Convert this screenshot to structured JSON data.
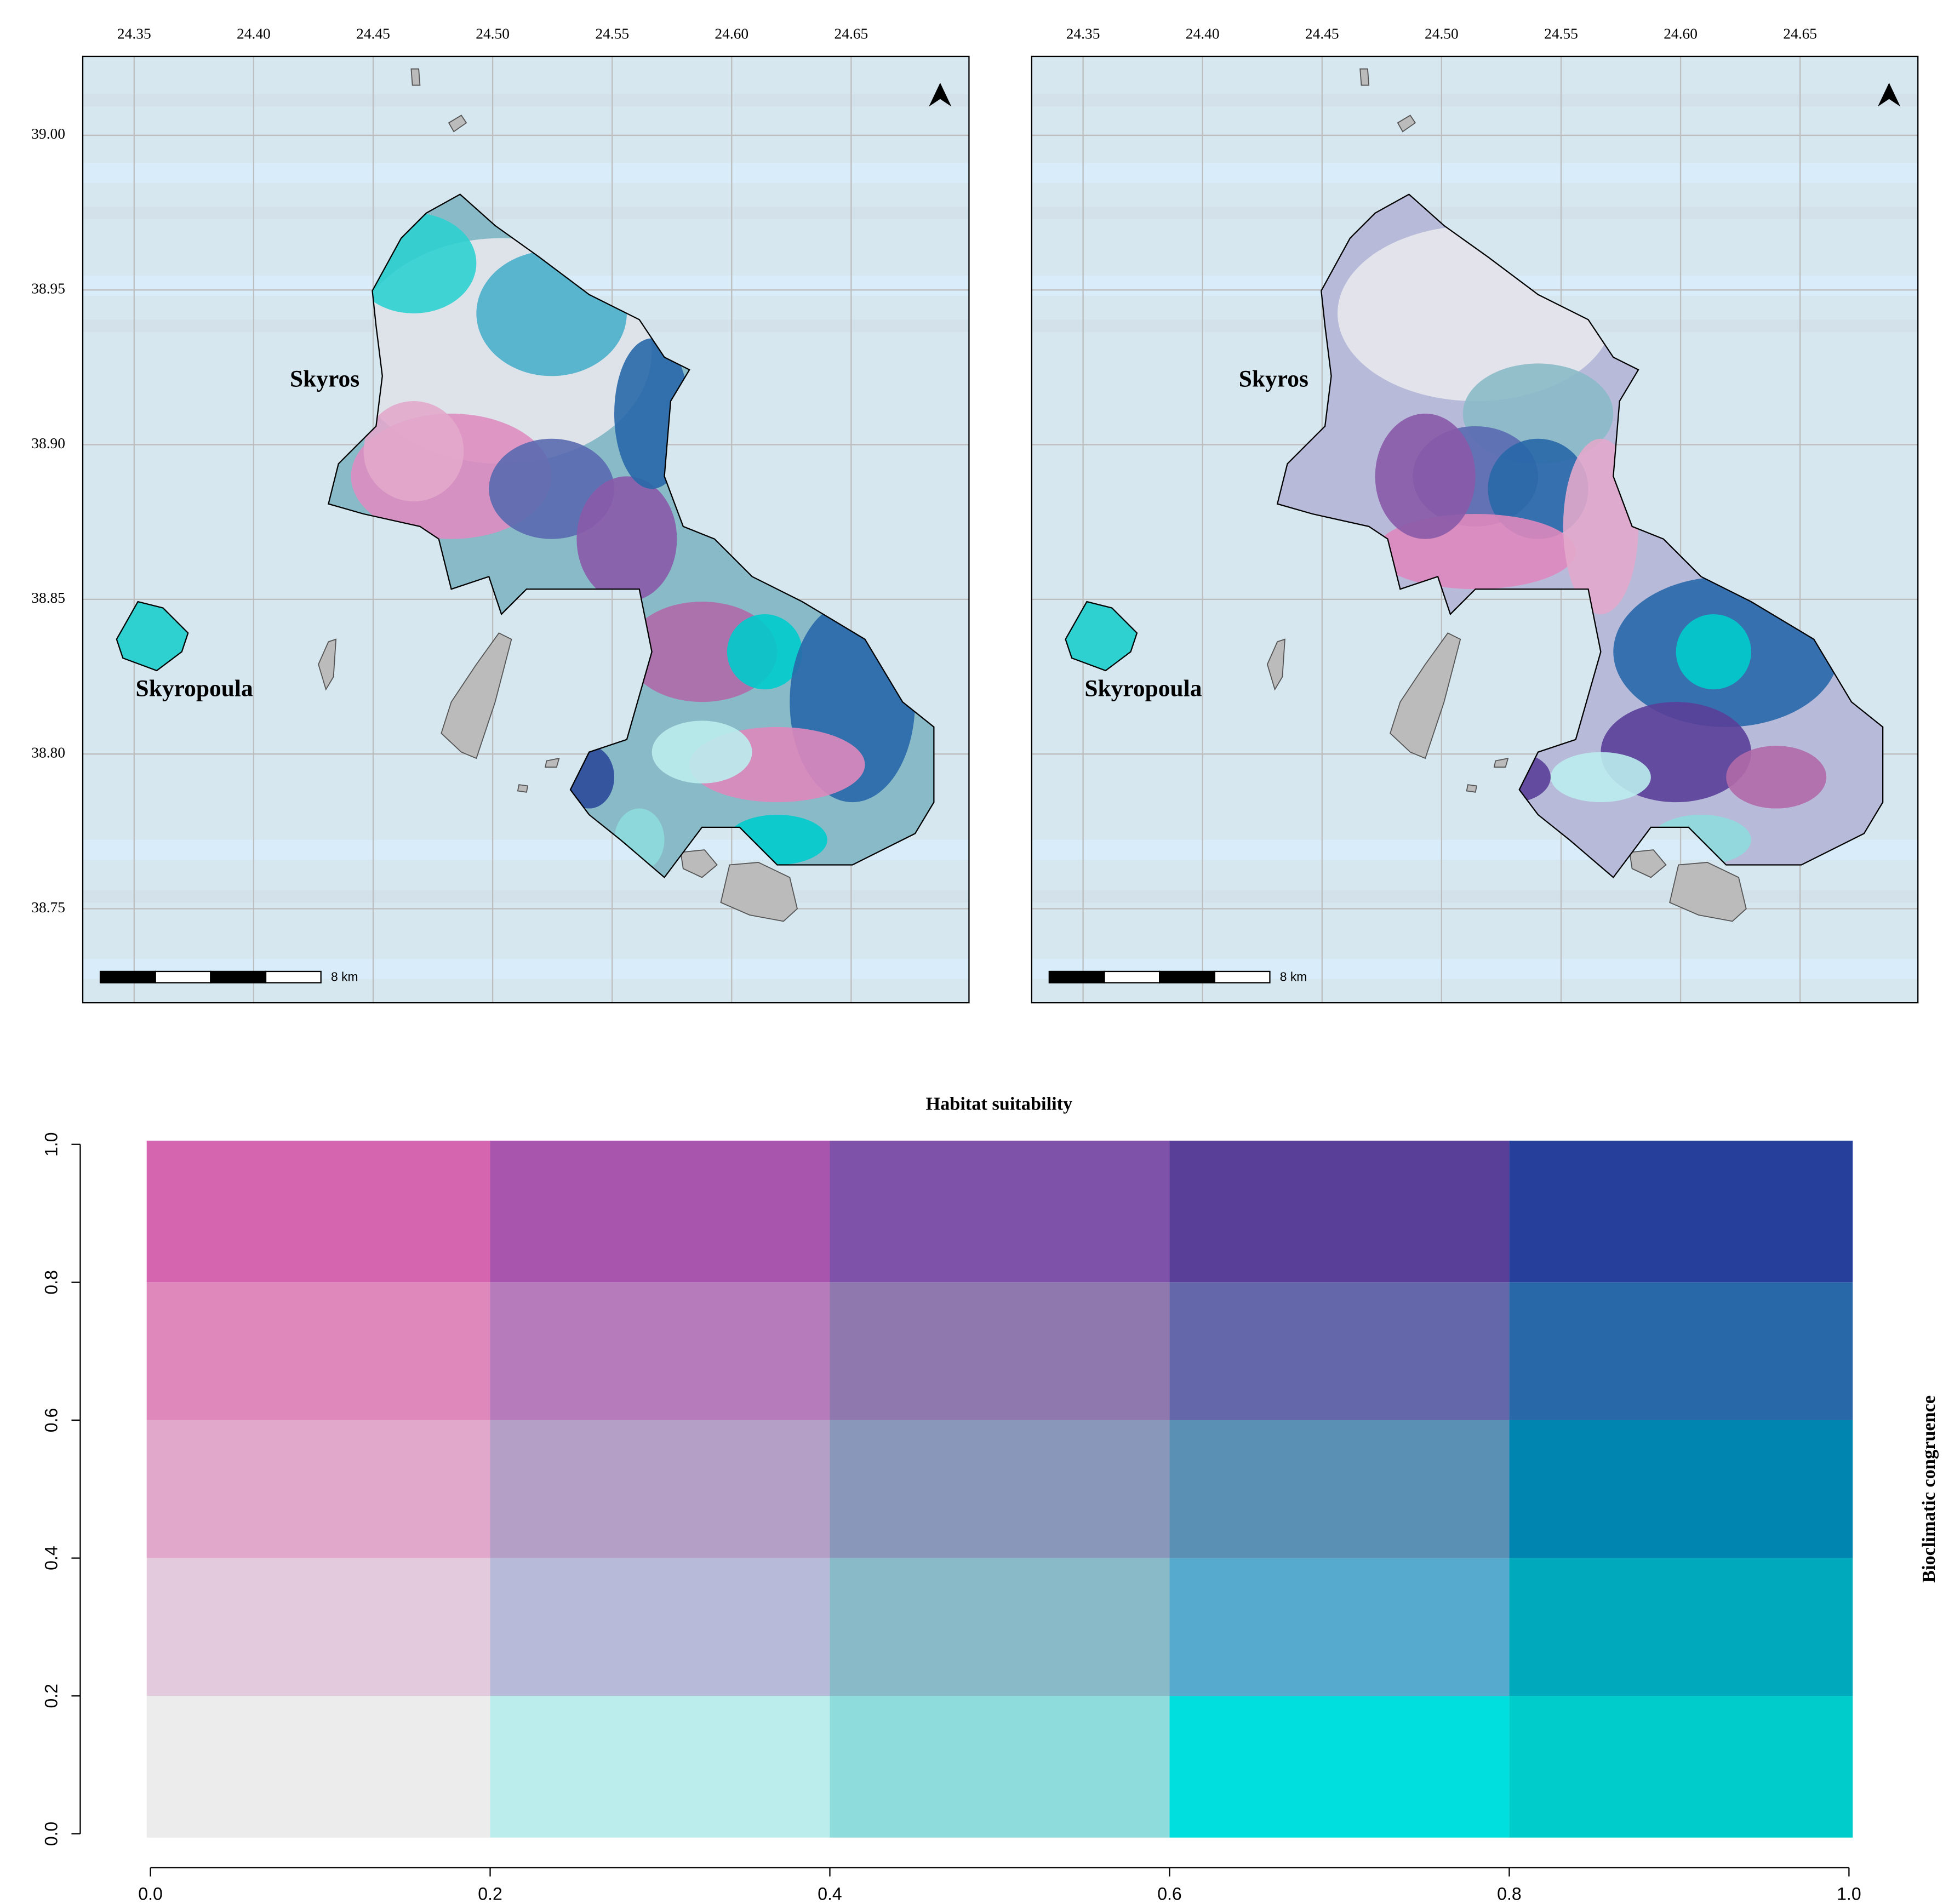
{
  "maps": [
    {
      "xlim": [
        24.3285,
        24.6993
      ],
      "ylim": [
        38.7196,
        39.0255
      ],
      "xticks": [
        24.35,
        {
          "value": 24.4,
          "label": "24.40"
        },
        24.45,
        {
          "value": 24.5,
          "label": "24.50"
        },
        24.55,
        {
          "value": 24.6,
          "label": "24.60"
        },
        24.65
      ],
      "yticks": [
        38.75,
        {
          "value": 38.8,
          "label": "38.80"
        },
        38.85,
        {
          "value": 38.9,
          "label": "38.90"
        },
        38.95,
        {
          "value": 39,
          "label": "39.00"
        }
      ],
      "labels": [
        "Skyros",
        "Skyropoula"
      ],
      "scale_label": "8 km"
    },
    {
      "xlim": [
        24.3285,
        24.6993
      ],
      "ylim": [
        38.7196,
        39.0255
      ],
      "xticks": [
        24.35,
        {
          "value": 24.4,
          "label": "24.40"
        },
        24.45,
        {
          "value": 24.5,
          "label": "24.50"
        },
        24.55,
        {
          "value": 24.6,
          "label": "24.60"
        },
        24.65
      ],
      "yticks": [
        38.75,
        {
          "value": 38.8,
          "label": "38.80"
        },
        38.85,
        {
          "value": 38.9,
          "label": "38.90"
        },
        38.95,
        {
          "value": 39,
          "label": "39.00"
        }
      ],
      "labels": [
        "Skyros",
        "Skyropoula"
      ],
      "scale_label": "8 km"
    }
  ],
  "chart_data": {
    "type": "heatmap",
    "title": "Habitat suitability",
    "y_label": "Bioclimatic congruence",
    "xlim": [
      0,
      1
    ],
    "ylim": [
      0,
      1
    ],
    "xticks": [
      {
        "value": 0,
        "label": "0.0"
      },
      0.2,
      0.4,
      0.6,
      0.8,
      {
        "value": 1,
        "label": "1.0"
      }
    ],
    "yticks": [
      {
        "value": 0,
        "label": "0.0"
      },
      0.2,
      0.4,
      0.6,
      0.8,
      {
        "value": 1,
        "label": "1.0"
      }
    ],
    "colors": [
      [
        "#ececec",
        "#bbeded",
        "#8edcdc",
        "#00dede",
        "#00cccc"
      ],
      [
        "#e3cadd",
        "#b8bad9",
        "#89bac8",
        "#56aacd",
        "#00a9bc"
      ],
      [
        "#e2a8cb",
        "#b49fc6",
        "#8997ba",
        "#5b90b5",
        "#0085b0"
      ],
      [
        "#de88bc",
        "#b57bbb",
        "#8e78ad",
        "#6467aa",
        "#2868a9"
      ],
      [
        "#d465ae",
        "#a855ad",
        "#7d52a8",
        "#5a3f98",
        "#253f9a"
      ]
    ]
  }
}
